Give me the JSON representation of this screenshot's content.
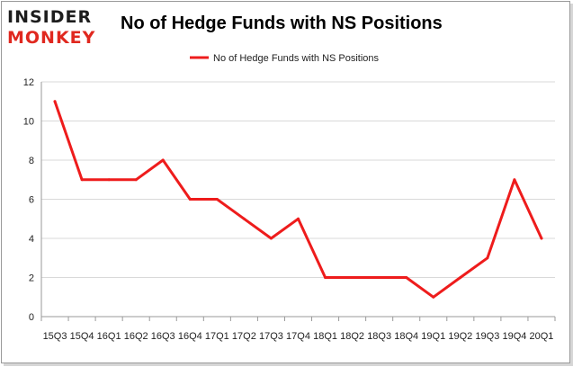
{
  "logo": {
    "line1": "INSIDER",
    "line2": "MONKEY"
  },
  "chart_data": {
    "type": "line",
    "title": "No of Hedge Funds with NS Positions",
    "xlabel": "",
    "ylabel": "",
    "categories": [
      "15Q3",
      "15Q4",
      "16Q1",
      "16Q2",
      "16Q3",
      "16Q4",
      "17Q1",
      "17Q2",
      "17Q3",
      "17Q4",
      "18Q1",
      "18Q2",
      "18Q3",
      "18Q4",
      "19Q1",
      "19Q2",
      "19Q3",
      "19Q4",
      "20Q1"
    ],
    "series": [
      {
        "name": "No of Hedge Funds with NS Positions",
        "values": [
          11,
          7,
          7,
          7,
          8,
          6,
          6,
          5,
          4,
          5,
          2,
          2,
          2,
          2,
          1,
          2,
          3,
          7,
          4
        ]
      }
    ],
    "ylim": [
      0,
      12
    ],
    "yticks": [
      0,
      2,
      4,
      6,
      8,
      10,
      12
    ],
    "grid": true,
    "legend": "top-center",
    "colors": {
      "line": "#ee1c1c",
      "grid": "#d9d9d9",
      "axis": "#9a9a9a"
    }
  }
}
